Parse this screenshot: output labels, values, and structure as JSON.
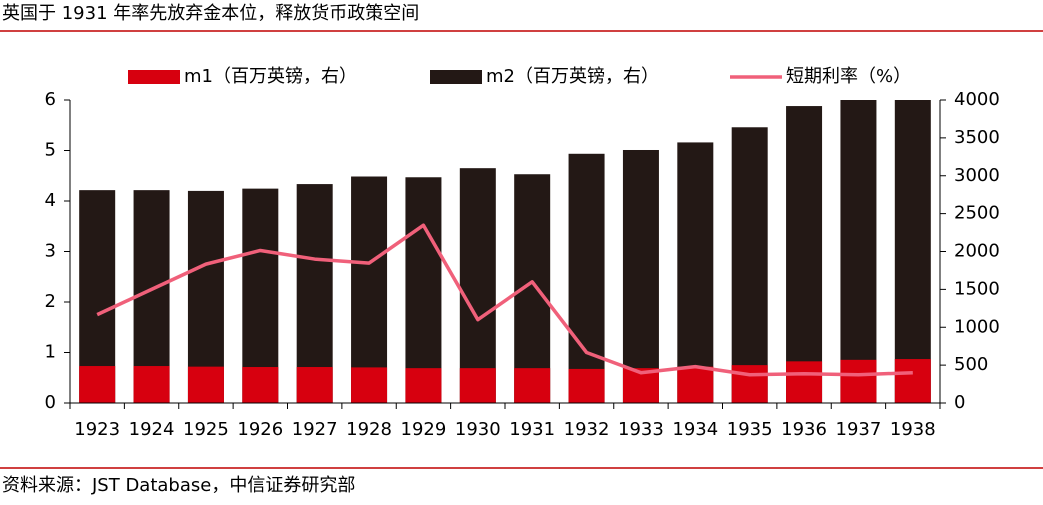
{
  "chart_data": {
    "type": "bar-line",
    "title": "英国于 1931 年率先放弃金本位，释放货币政策空间",
    "source": "资料来源：JST Database，中信证券研究部",
    "categories": [
      "1923",
      "1924",
      "1925",
      "1926",
      "1927",
      "1928",
      "1929",
      "1930",
      "1931",
      "1932",
      "1933",
      "1934",
      "1935",
      "1936",
      "1937",
      "1938"
    ],
    "series": [
      {
        "name": "m2（百万英镑，右）",
        "color": "#231815",
        "kind": "bar",
        "axis": "y2",
        "values": [
          2810,
          2810,
          2800,
          2830,
          2890,
          2990,
          2980,
          3100,
          3020,
          3290,
          3340,
          3440,
          3640,
          3920,
          4000,
          4000
        ]
      },
      {
        "name": "m1（百万英镑，右）",
        "color": "#d7000f",
        "kind": "bar",
        "axis": "y2",
        "values": [
          488,
          488,
          480,
          475,
          475,
          470,
          460,
          460,
          460,
          450,
          460,
          480,
          500,
          550,
          570,
          580
        ]
      },
      {
        "name": "短期利率（%）",
        "color": "#f0607a",
        "kind": "line",
        "axis": "y",
        "values": [
          1.75,
          2.25,
          2.75,
          3.02,
          2.85,
          2.77,
          3.52,
          1.65,
          2.4,
          1.0,
          0.6,
          0.72,
          0.56,
          0.58,
          0.56,
          0.6
        ]
      }
    ],
    "ylim": [
      0,
      6
    ],
    "yticks": [
      0,
      1,
      2,
      3,
      4,
      5,
      6
    ],
    "y2lim": [
      0,
      4000
    ],
    "y2ticks": [
      0,
      500,
      1000,
      1500,
      2000,
      2500,
      3000,
      3500,
      4000
    ]
  }
}
